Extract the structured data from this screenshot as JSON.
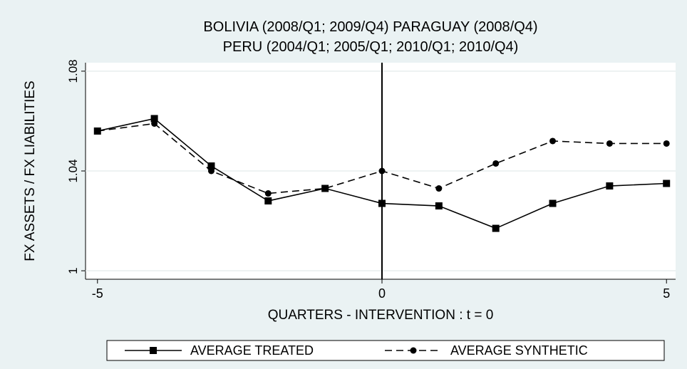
{
  "chart_data": {
    "type": "line",
    "title": [
      "BOLIVIA (2008/Q1; 2009/Q4) PARAGUAY (2008/Q4)",
      "PERU (2004/Q1; 2005/Q1; 2010/Q1; 2010/Q4)"
    ],
    "x_label": "QUARTERS - INTERVENTION : t = 0",
    "y_label": "FX ASSETS / FX LIABILITIES",
    "x": [
      -5,
      -4,
      -3,
      -2,
      -1,
      0,
      1,
      2,
      3,
      4,
      5
    ],
    "series": [
      {
        "name": "AVERAGE TREATED",
        "color": "#000000",
        "dash": "solid",
        "marker": "square",
        "values": [
          1.056,
          1.061,
          1.042,
          1.028,
          1.033,
          1.027,
          1.026,
          1.017,
          1.027,
          1.034,
          1.035
        ]
      },
      {
        "name": "AVERAGE SYNTHETIC",
        "color": "#000000",
        "dash": "dashed",
        "marker": "circle",
        "values": [
          1.056,
          1.059,
          1.04,
          1.031,
          1.033,
          1.04,
          1.033,
          1.043,
          1.052,
          1.051,
          1.051
        ]
      }
    ],
    "xlim": [
      -5.21,
      5.16
    ],
    "ylim": [
      0.9966,
      1.0834
    ],
    "xticks": [
      -5,
      0,
      5
    ],
    "yticks": [
      1,
      1.04,
      1.08
    ],
    "xline": 0,
    "grid": true,
    "legend": "bottom"
  }
}
